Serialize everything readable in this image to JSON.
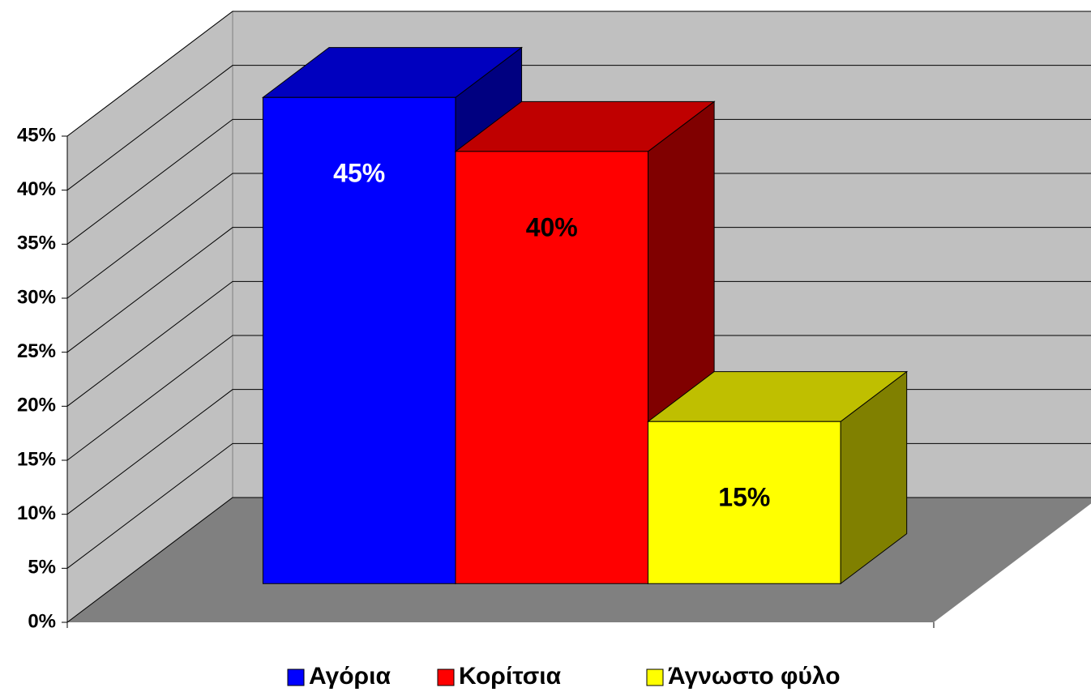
{
  "chart_data": {
    "type": "bar3d",
    "series": [
      {
        "name": "Αγόρια",
        "color": "#0000ff",
        "label_color": "#ffffff",
        "values": [
          45
        ],
        "value_labels": [
          "45%"
        ]
      },
      {
        "name": "Κορίτσια",
        "color": "#ff0000",
        "label_color": "#000000",
        "values": [
          40
        ],
        "value_labels": [
          "40%"
        ]
      },
      {
        "name": "Άγνωστο φύλο",
        "color": "#ffff00",
        "label_color": "#000000",
        "values": [
          15
        ],
        "value_labels": [
          "15%"
        ]
      }
    ],
    "ylim": [
      0,
      45
    ],
    "yticks": [
      {
        "value": 0,
        "label": "0%"
      },
      {
        "value": 5,
        "label": "5%"
      },
      {
        "value": 10,
        "label": "10%"
      },
      {
        "value": 15,
        "label": "15%"
      },
      {
        "value": 20,
        "label": "20%"
      },
      {
        "value": 25,
        "label": "25%"
      },
      {
        "value": 30,
        "label": "30%"
      },
      {
        "value": 35,
        "label": "35%"
      },
      {
        "value": 40,
        "label": "40%"
      },
      {
        "value": 45,
        "label": "45%"
      }
    ],
    "grid": true,
    "wall_color": "#c0c0c0",
    "floor_color": "#808080",
    "legend": "bottom"
  }
}
